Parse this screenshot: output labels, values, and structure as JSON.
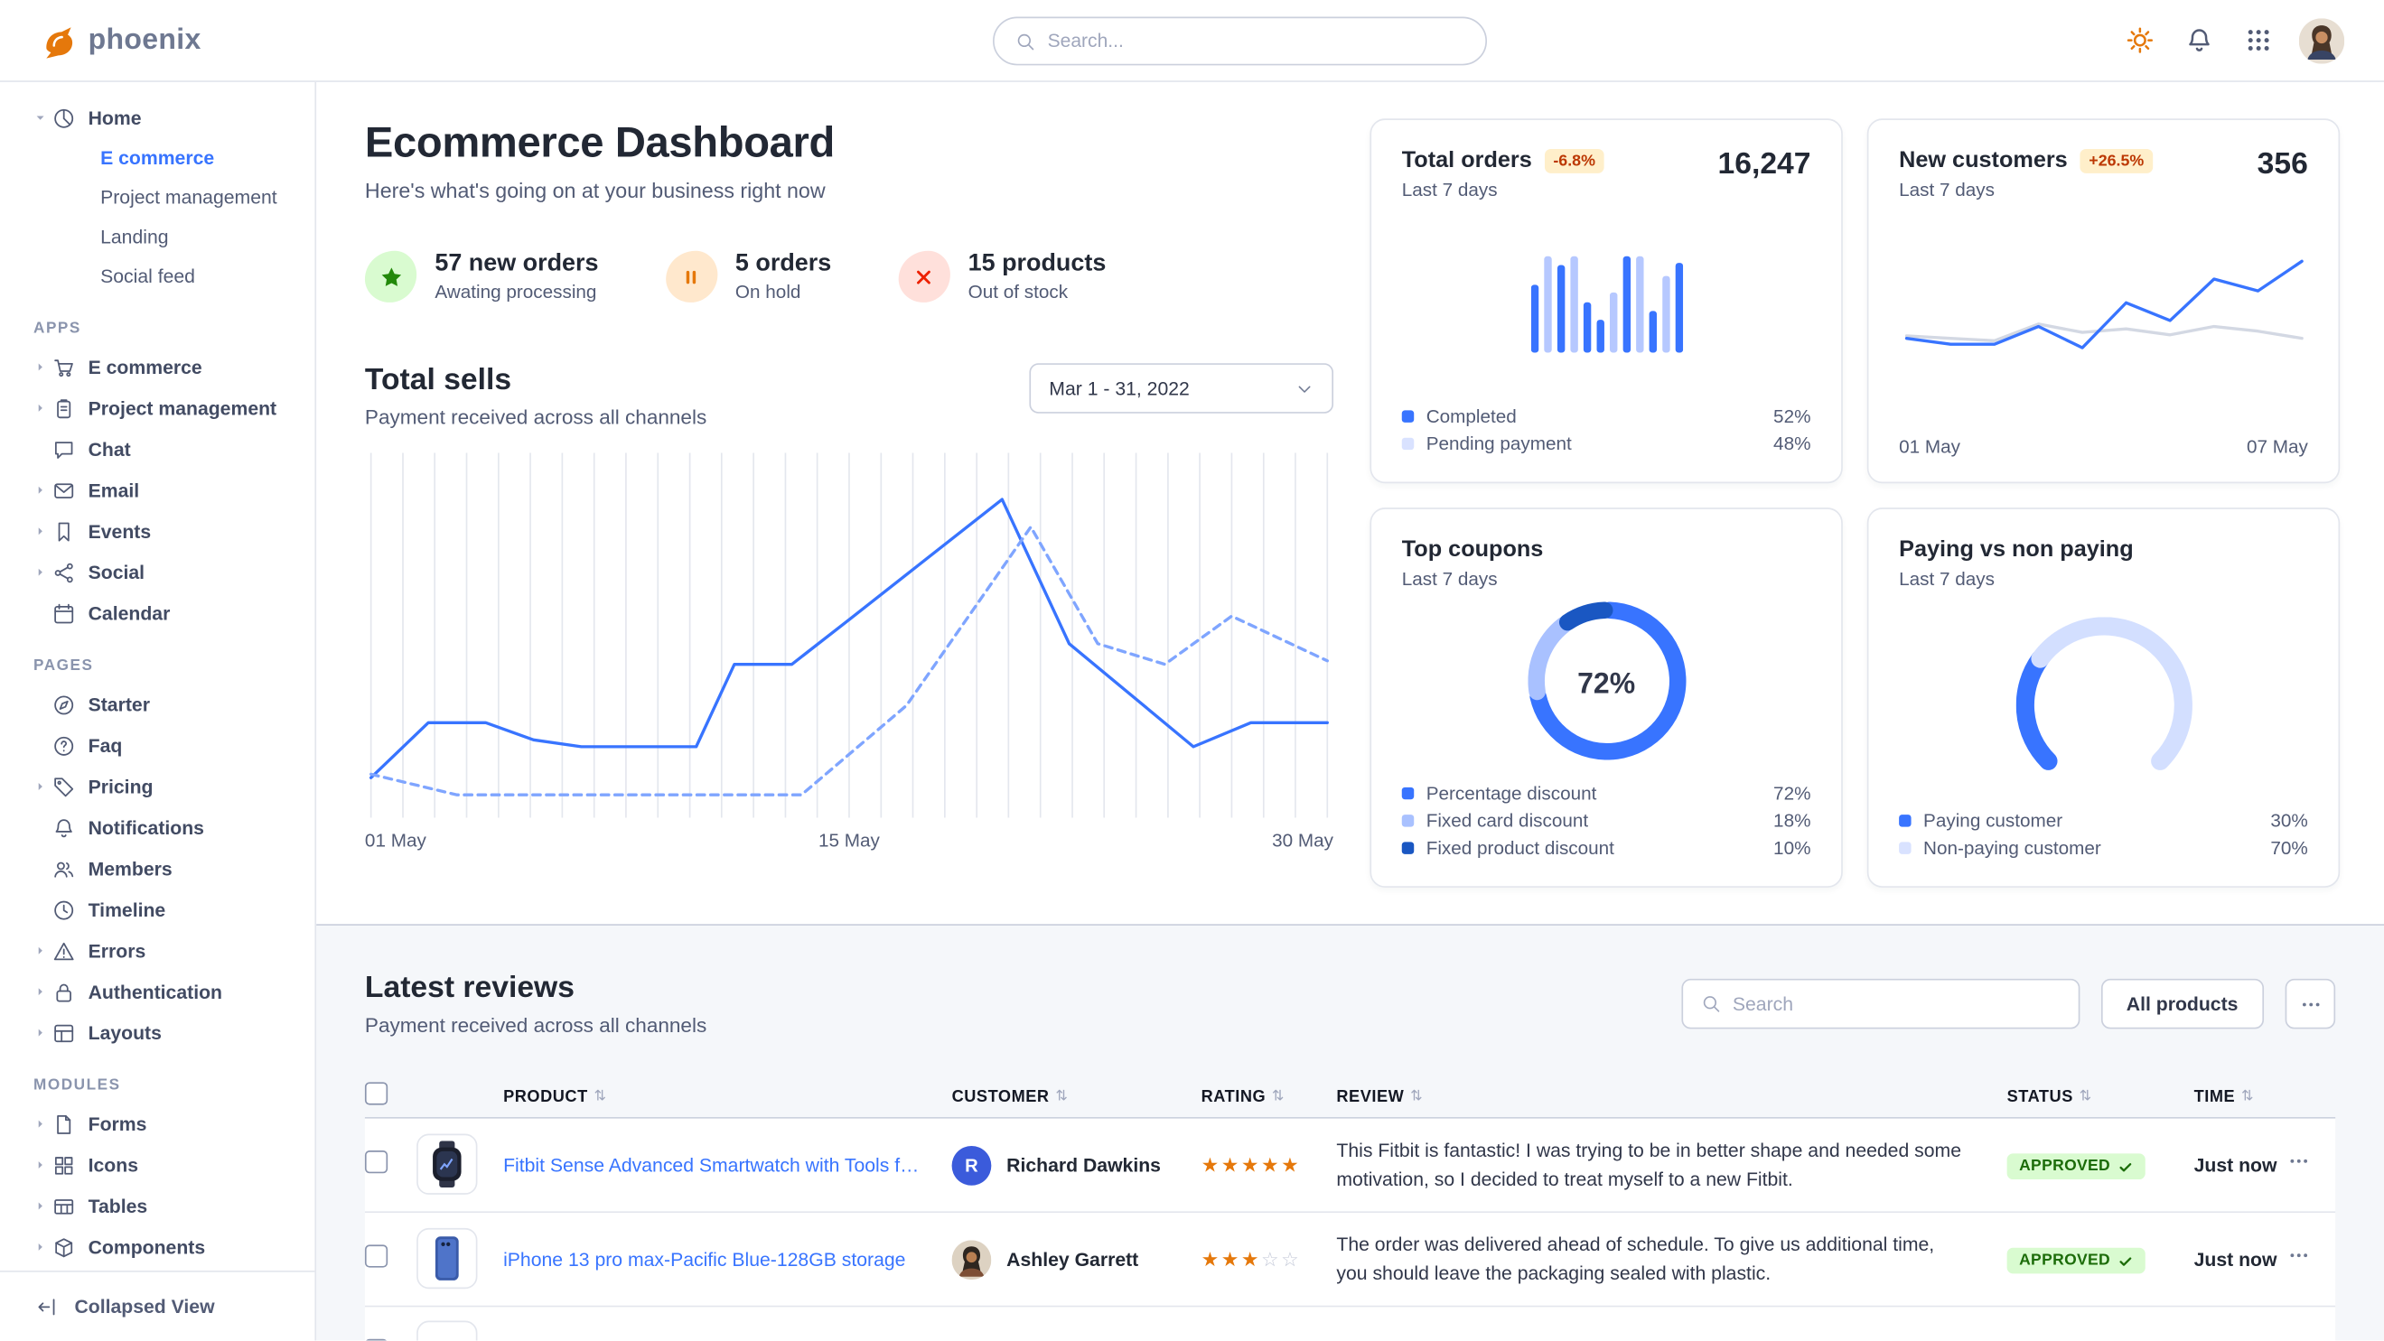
{
  "brand": {
    "name": "phoenix"
  },
  "topbar": {
    "search_placeholder": "Search..."
  },
  "sidebar": {
    "collapsed_label": "Collapsed View",
    "home": {
      "label": "Home",
      "icon": "pie",
      "children": [
        {
          "label": "E commerce",
          "active": true
        },
        {
          "label": "Project management",
          "active": false
        },
        {
          "label": "Landing",
          "active": false
        },
        {
          "label": "Social feed",
          "active": false
        }
      ]
    },
    "sections": [
      {
        "title": "APPS",
        "items": [
          {
            "label": "E commerce",
            "icon": "cart",
            "caret": true
          },
          {
            "label": "Project management",
            "icon": "clipboard",
            "caret": true
          },
          {
            "label": "Chat",
            "icon": "chat",
            "caret": false
          },
          {
            "label": "Email",
            "icon": "mail",
            "caret": true
          },
          {
            "label": "Events",
            "icon": "bookmark",
            "caret": true
          },
          {
            "label": "Social",
            "icon": "share",
            "caret": true
          },
          {
            "label": "Calendar",
            "icon": "calendar",
            "caret": false
          }
        ]
      },
      {
        "title": "PAGES",
        "items": [
          {
            "label": "Starter",
            "icon": "compass",
            "caret": false
          },
          {
            "label": "Faq",
            "icon": "question",
            "caret": false
          },
          {
            "label": "Pricing",
            "icon": "tag",
            "caret": true
          },
          {
            "label": "Notifications",
            "icon": "bell",
            "caret": false
          },
          {
            "label": "Members",
            "icon": "users",
            "caret": false
          },
          {
            "label": "Timeline",
            "icon": "clock",
            "caret": false
          },
          {
            "label": "Errors",
            "icon": "warning",
            "caret": true
          },
          {
            "label": "Authentication",
            "icon": "lock",
            "caret": true
          },
          {
            "label": "Layouts",
            "icon": "layout",
            "caret": true
          }
        ]
      },
      {
        "title": "MODULES",
        "items": [
          {
            "label": "Forms",
            "icon": "file",
            "caret": true
          },
          {
            "label": "Icons",
            "icon": "grid",
            "caret": true
          },
          {
            "label": "Tables",
            "icon": "table",
            "caret": true
          },
          {
            "label": "Components",
            "icon": "box",
            "caret": true
          }
        ]
      }
    ]
  },
  "dashboard": {
    "title": "Ecommerce Dashboard",
    "subtitle": "Here's what's going on at your business right now",
    "stats": [
      {
        "value": "57 new orders",
        "caption": "Awating processing",
        "icon": "star",
        "accent": "#23890b",
        "bg": "#d9fbd0"
      },
      {
        "value": "5 orders",
        "caption": "On hold",
        "icon": "pause",
        "accent": "#e5780b",
        "bg": "#ffe8cd"
      },
      {
        "value": "15 products",
        "caption": "Out of stock",
        "icon": "x",
        "accent": "#ed2000",
        "bg": "#ffe0db"
      }
    ],
    "total_sells": {
      "title": "Total sells",
      "subtitle": "Payment received across all channels",
      "date_range": "Mar 1 - 31, 2022",
      "x_labels": [
        "01 May",
        "15 May",
        "30 May"
      ]
    }
  },
  "cards": {
    "total_orders": {
      "title": "Total orders",
      "badge": "-6.8%",
      "period": "Last 7 days",
      "value": "16,247",
      "legend": [
        {
          "label": "Completed",
          "value": "52%",
          "color": "#3874ff"
        },
        {
          "label": "Pending payment",
          "value": "48%",
          "color": "#d9e2ff"
        }
      ]
    },
    "new_customers": {
      "title": "New customers",
      "badge": "+26.5%",
      "period": "Last 7 days",
      "value": "356",
      "x_labels": [
        "01 May",
        "07 May"
      ]
    },
    "top_coupons": {
      "title": "Top coupons",
      "period": "Last 7 days",
      "center_label": "72%",
      "legend": [
        {
          "label": "Percentage discount",
          "value": "72%",
          "color": "#3874ff"
        },
        {
          "label": "Fixed card discount",
          "value": "18%",
          "color": "#a9c1ff"
        },
        {
          "label": "Fixed product discount",
          "value": "10%",
          "color": "#1a57c2"
        }
      ]
    },
    "paying": {
      "title": "Paying vs non paying",
      "period": "Last 7 days",
      "legend": [
        {
          "label": "Paying customer",
          "value": "30%",
          "color": "#3874ff"
        },
        {
          "label": "Non-paying customer",
          "value": "70%",
          "color": "#d9e2ff"
        }
      ]
    }
  },
  "chart_data": [
    {
      "id": "total_sells",
      "type": "line",
      "title": "Total sells",
      "x_labels": [
        "01 May",
        "15 May",
        "30 May"
      ],
      "ylim": [
        0,
        100
      ],
      "gridlines": 31,
      "series": [
        {
          "name": "current",
          "style": "solid",
          "color": "#3874ff",
          "x": [
            0,
            0.06,
            0.12,
            0.17,
            0.22,
            0.34,
            0.38,
            0.44,
            0.5,
            0.66,
            0.73,
            0.86,
            0.92,
            1
          ],
          "y": [
            9,
            25,
            25,
            20,
            18,
            18,
            42,
            42,
            55,
            90,
            48,
            18,
            25,
            25
          ]
        },
        {
          "name": "previous",
          "style": "dashed",
          "color": "#7fa5ff",
          "x": [
            0,
            0.09,
            0.2,
            0.45,
            0.56,
            0.69,
            0.76,
            0.83,
            0.9,
            1
          ],
          "y": [
            10,
            4,
            4,
            4,
            30,
            82,
            48,
            42,
            56,
            43
          ]
        }
      ]
    },
    {
      "id": "total_orders",
      "type": "bar",
      "ylim": [
        0,
        100
      ],
      "values": [
        62,
        88,
        80,
        88,
        46,
        30,
        55,
        88,
        88,
        38,
        70,
        82
      ],
      "colors": [
        "#3874ff",
        "#b6c8ff",
        "#3874ff",
        "#b6c8ff",
        "#3874ff",
        "#3874ff",
        "#b6c8ff",
        "#3874ff",
        "#b6c8ff",
        "#3874ff",
        "#b6c8ff",
        "#3874ff"
      ]
    },
    {
      "id": "new_customers",
      "type": "line",
      "x_labels": [
        "01 May",
        "07 May"
      ],
      "ylim": [
        0,
        100
      ],
      "series": [
        {
          "name": "previous",
          "style": "solid",
          "color": "#d3d8e3",
          "y": [
            32,
            30,
            28,
            42,
            35,
            38,
            33,
            40,
            36,
            30
          ]
        },
        {
          "name": "current",
          "style": "solid",
          "color": "#3874ff",
          "y": [
            30,
            25,
            25,
            40,
            22,
            60,
            45,
            80,
            70,
            95
          ]
        }
      ]
    },
    {
      "id": "top_coupons",
      "type": "donut",
      "center_label": "72%",
      "slices": [
        {
          "label": "Percentage discount",
          "value": 72,
          "color": "#3874ff"
        },
        {
          "label": "Fixed card discount",
          "value": 18,
          "color": "#a9c1ff"
        },
        {
          "label": "Fixed product discount",
          "value": 10,
          "color": "#1a57c2"
        }
      ]
    },
    {
      "id": "paying_vs_non_paying",
      "type": "gauge",
      "slices": [
        {
          "label": "Paying customer",
          "value": 30,
          "color": "#3874ff"
        },
        {
          "label": "Non-paying customer",
          "value": 70,
          "color": "#d3dfff"
        }
      ]
    }
  ],
  "reviews": {
    "title": "Latest reviews",
    "subtitle": "Payment received across all channels",
    "search_placeholder": "Search",
    "filter_button": "All products",
    "columns": [
      "PRODUCT",
      "CUSTOMER",
      "RATING",
      "REVIEW",
      "STATUS",
      "TIME"
    ],
    "rows": [
      {
        "product": "Fitbit Sense Advanced Smartwatch with Tools fo...",
        "image": "smartwatch",
        "customer": "Richard Dawkins",
        "avatar": {
          "kind": "initial",
          "text": "R",
          "color": "#3b5bdb"
        },
        "rating": 5,
        "review": "This Fitbit is fantastic! I was trying to be in better shape and needed some motivation, so I decided to treat myself to a new Fitbit.",
        "status": "APPROVED",
        "time": "Just now"
      },
      {
        "product": "iPhone 13 pro max-Pacific Blue-128GB storage",
        "image": "iphone",
        "customer": "Ashley Garrett",
        "avatar": {
          "kind": "photo"
        },
        "rating": 3,
        "review": "The order was delivered ahead of schedule. To give us additional time, you should leave the packaging sealed with plastic.",
        "status": "APPROVED",
        "time": "Just now"
      }
    ]
  }
}
